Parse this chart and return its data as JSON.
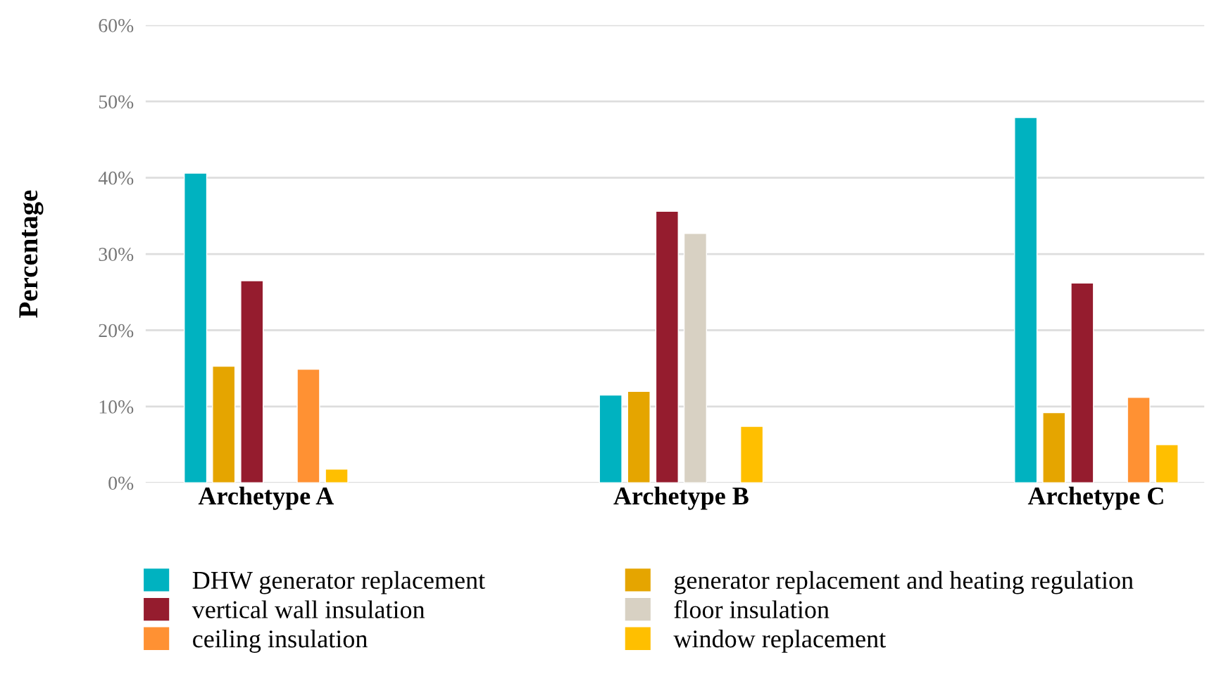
{
  "chart_data": {
    "type": "bar",
    "ylabel": "Percentage",
    "categories": [
      "Archetype A",
      "Archetype B",
      "Archetype C"
    ],
    "series": [
      {
        "name": "DHW generator replacement",
        "color": "#00b2c0",
        "values": [
          40.6,
          11.5,
          47.9
        ]
      },
      {
        "name": "generator replacement and heating regulation",
        "color": "#e5a500",
        "values": [
          15.3,
          12.0,
          9.2
        ]
      },
      {
        "name": "vertical wall insulation",
        "color": "#951c2e",
        "values": [
          26.5,
          35.6,
          26.2
        ]
      },
      {
        "name": "floor insulation",
        "color": "#d8d1c3",
        "values": [
          null,
          32.7,
          null
        ]
      },
      {
        "name": "ceiling insulation",
        "color": "#ff9133",
        "values": [
          14.9,
          null,
          11.2
        ]
      },
      {
        "name": "window replacement",
        "color": "#ffbf00",
        "values": [
          1.8,
          7.4,
          5.0
        ]
      }
    ],
    "ylim": [
      0,
      60
    ],
    "yticks": [
      {
        "value": 0,
        "label": "0%"
      },
      {
        "value": 10,
        "label": "10%"
      },
      {
        "value": 20,
        "label": "20%"
      },
      {
        "value": 30,
        "label": "30%"
      },
      {
        "value": 40,
        "label": "40%"
      },
      {
        "value": 50,
        "label": "50%"
      },
      {
        "value": 60,
        "label": "60%"
      }
    ],
    "grid": "y",
    "legend": "bottom"
  }
}
